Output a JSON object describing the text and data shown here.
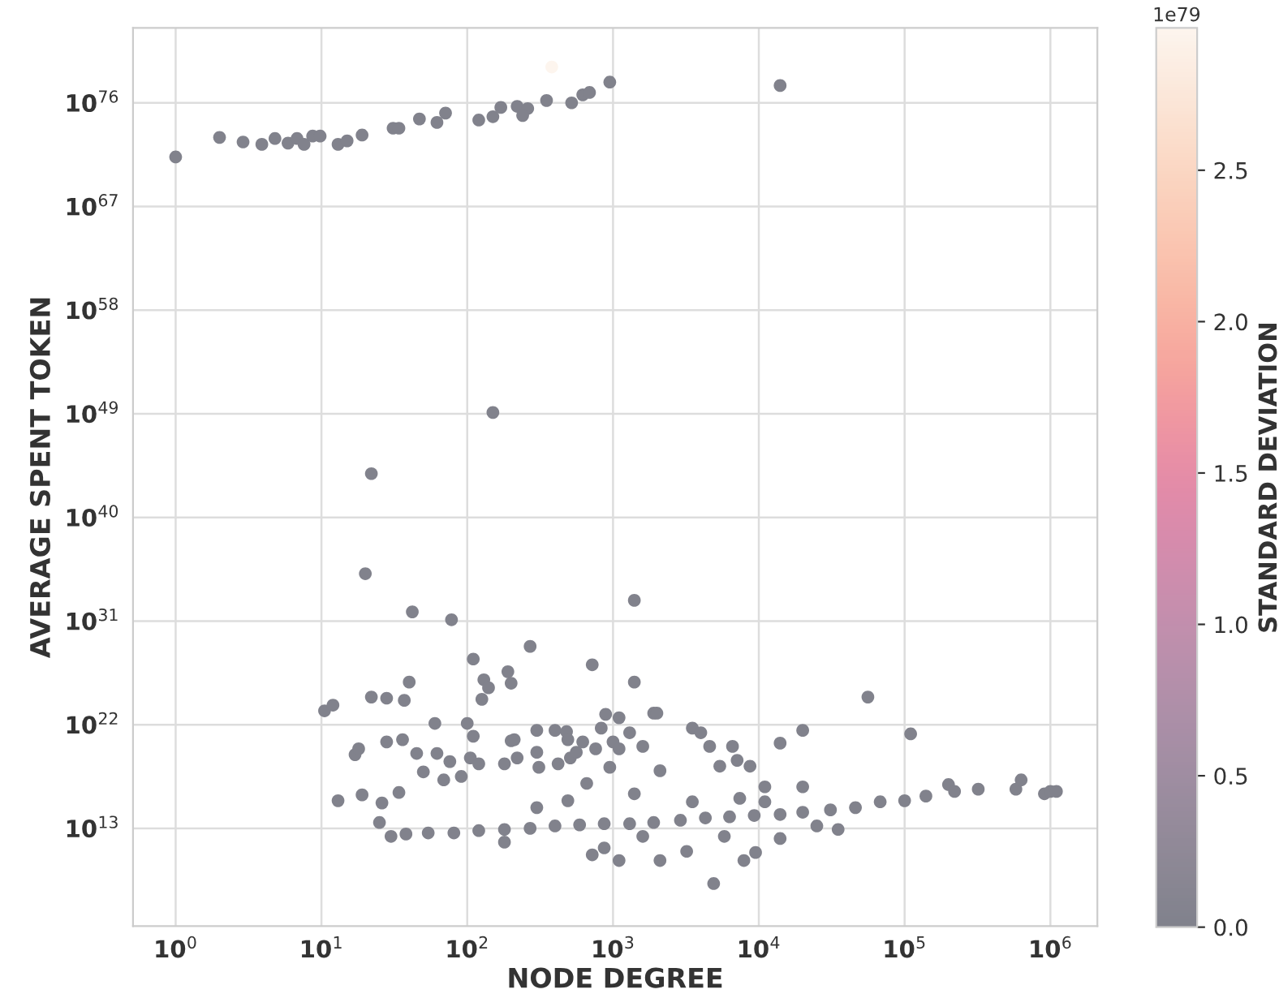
{
  "chart_data": {
    "type": "scatter",
    "xlabel": "NODE DEGREE",
    "ylabel": "AVERAGE SPENT TOKEN",
    "clabel": "STANDARD DEVIATION",
    "log": "xy",
    "grid": true,
    "marker": "circle",
    "x": [
      1,
      2,
      2.9,
      3.9,
      4.8,
      5.9,
      6.8,
      7.6,
      8.7,
      9.8,
      13,
      15,
      19,
      31,
      34,
      47,
      62,
      71,
      120,
      150,
      170,
      220,
      260,
      240,
      350,
      520,
      620,
      690,
      950,
      380,
      14000,
      150,
      22,
      20,
      42,
      78,
      1400,
      270,
      110,
      720,
      130,
      140,
      190,
      200,
      1400,
      40,
      56000,
      10.5,
      12,
      13,
      22,
      28,
      37,
      17,
      18,
      19,
      26,
      25,
      30,
      38,
      28,
      36,
      34,
      45,
      50,
      60,
      62,
      69,
      76,
      91,
      100,
      110,
      105,
      120,
      126,
      180,
      200,
      210,
      220,
      300,
      300,
      310,
      400,
      420,
      480,
      490,
      510,
      560,
      620,
      660,
      760,
      830,
      890,
      950,
      1000,
      1100,
      1100,
      1300,
      1600,
      1900,
      2000,
      2100,
      1400,
      3500,
      4000,
      4600,
      5400,
      6600,
      7100,
      8700,
      11000,
      14000,
      20000,
      20000,
      110000,
      54,
      81,
      120,
      180,
      270,
      400,
      590,
      870,
      1300,
      1900,
      2900,
      4300,
      6300,
      9300,
      14000,
      20000,
      31000,
      46000,
      68000,
      100000,
      140000,
      200000,
      220000,
      320000,
      580000,
      630000,
      910000,
      1000000,
      1100000,
      300,
      490,
      870,
      720,
      1100,
      2100,
      3200,
      4900,
      7900,
      9500,
      14000,
      35000,
      3500,
      7400,
      11000,
      180,
      1600,
      5800,
      25000
    ],
    "values": [
      2e+71,
      1e+73,
      4e+72,
      2.5e+72,
      8e+72,
      3.2e+72,
      8e+72,
      2.5e+72,
      1.3e+73,
      1.3e+73,
      2.5e+72,
      5e+72,
      1.6e+73,
      6.3e+73,
      6.3e+73,
      4e+74,
      2e+74,
      1.3e+75,
      3.2e+74,
      6.3e+74,
      4e+75,
      5e+75,
      3.2e+75,
      8e+74,
      1.6e+76,
      1e+76,
      5e+76,
      8e+76,
      6.3e+77,
      1.3e+79,
      3.2e+77,
      1.3e+49,
      6.3e+43,
      1.3e+35,
      6.3e+31,
      1.3e+31,
      6.3e+32,
      6.3e+28,
      5e+27,
      1.6e+27,
      8e+25,
      1.6e+25,
      4e+26,
      4e+25,
      5e+25,
      5e+25,
      2.5e+24,
      1.6e+23,
      5e+23,
      2500000000000000.0,
      2.5e+24,
      2e+24,
      1.3e+24,
      2.5e+19,
      8e+19,
      8000000000000000.0,
      1600000000000000.0,
      32000000000000.0,
      2000000000000.0,
      3200000000000.0,
      3.2e+20,
      5e+20,
      1.3e+16,
      3.2e+19,
      8e+17,
      1.3e+22,
      3.2e+19,
      1.6e+17,
      6.3e+18,
      3.2e+17,
      1.3e+22,
      1e+21,
      1.3e+19,
      4e+18,
      1.6e+24,
      4e+18,
      4e+20,
      5e+20,
      1.3e+19,
      3.2e+21,
      4e+19,
      2e+18,
      3.2e+21,
      4e+18,
      2.5e+21,
      5e+20,
      1.3e+19,
      4e+19,
      3.2e+20,
      8e+16,
      8e+19,
      5e+21,
      8e+22,
      2e+18,
      3.2e+20,
      4e+22,
      8e+19,
      2e+21,
      1.3e+20,
      1e+23,
      1e+23,
      1e+18,
      1e+16,
      5e+21,
      2e+21,
      1.3e+20,
      2.5e+18,
      1.3e+20,
      8e+18,
      2.5e+18,
      4e+16,
      2.5e+20,
      3.2e+21,
      4e+16,
      1.6e+21,
      4000000000000.0,
      4000000000000.0,
      6300000000000.0,
      8000000000000.0,
      10000000000000.0,
      16000000000000.0,
      20000000000000.0,
      25000000000000.0,
      25000000000000.0,
      32000000000000.0,
      50000000000000.0,
      80000000000000.0,
      100000000000000.0,
      130000000000000.0,
      160000000000000.0,
      250000000000000.0,
      400000000000000.0,
      630000000000000.0,
      2000000000000000.0,
      2500000000000000.0,
      6300000000000000.0,
      6.3e+16,
      1.6e+16,
      2.5e+16,
      2.5e+16,
      1.6e+17,
      1e+16,
      1.6e+16,
      1.6e+16,
      630000000000000.0,
      2500000000000000.0,
      200000000000.0,
      50000000000.0,
      16000000000.0,
      16000000000.0,
      100000000000.0,
      160000000.0,
      16000000000.0,
      80000000000.0,
      1300000000000.0,
      8000000000000.0,
      2000000000000000.0,
      4000000000000000.0,
      2000000000000000.0,
      630000000000.0,
      2000000000000.0,
      2000000000000.0,
      16000000000000.0
    ],
    "cvalues": [
      0,
      0,
      0,
      0,
      0,
      0,
      0,
      0,
      0,
      0,
      0,
      0,
      0,
      0,
      0,
      0,
      0,
      0,
      0,
      0,
      0,
      0,
      0,
      0,
      0,
      0,
      0,
      0,
      0,
      2.97,
      0,
      0,
      0,
      0,
      0,
      0,
      0,
      0,
      0,
      0,
      0,
      0,
      0,
      0,
      0,
      0,
      0,
      0,
      0,
      0,
      0,
      0,
      0,
      0,
      0,
      0,
      0,
      0,
      0,
      0,
      0,
      0,
      0,
      0,
      0,
      0,
      0,
      0,
      0,
      0,
      0,
      0,
      0,
      0,
      0,
      0,
      0,
      0,
      0,
      0,
      0,
      0,
      0,
      0,
      0,
      0,
      0,
      0,
      0,
      0,
      0,
      0,
      0,
      0,
      0,
      0,
      0,
      0,
      0,
      0,
      0,
      0,
      0,
      0,
      0,
      0,
      0,
      0,
      0,
      0,
      0,
      0,
      0,
      0,
      0,
      0,
      0,
      0,
      0,
      0,
      0,
      0,
      0,
      0,
      0,
      0,
      0,
      0,
      0,
      0,
      0,
      0,
      0,
      0,
      0,
      0,
      0,
      0,
      0,
      0,
      0,
      0,
      0,
      0,
      0,
      0,
      0,
      0,
      0,
      0,
      0,
      0,
      0,
      0,
      0,
      0,
      0,
      0,
      0,
      0,
      0,
      0,
      0
    ],
    "xlim": [
      0.51,
      2100000.0
    ],
    "ylim": [
      32000.0,
      3.2e+82
    ],
    "xticks": [
      {
        "value": 1,
        "label": "10$^{0}$"
      },
      {
        "value": 10,
        "label": "10$^{1}$"
      },
      {
        "value": 100,
        "label": "10$^{2}$"
      },
      {
        "value": 1000,
        "label": "10$^{3}$"
      },
      {
        "value": 10000,
        "label": "10$^{4}$"
      },
      {
        "value": 100000,
        "label": "10$^{5}$"
      },
      {
        "value": 1000000,
        "label": "10$^{6}$"
      }
    ],
    "yticks": [
      {
        "value": 10000000000000.0,
        "label": "10$^{13}$"
      },
      {
        "value": 1e+22,
        "label": "10$^{22}$"
      },
      {
        "value": 1e+31,
        "label": "10$^{31}$"
      },
      {
        "value": 1e+40,
        "label": "10$^{40}$"
      },
      {
        "value": 1e+49,
        "label": "10$^{49}$"
      },
      {
        "value": 1e+58,
        "label": "10$^{58}$"
      },
      {
        "value": 1e+67,
        "label": "10$^{67}$"
      },
      {
        "value": 1e+76,
        "label": "10$^{76}$"
      }
    ],
    "clim": [
      0,
      2.97
    ],
    "cticks": [
      {
        "value": 0,
        "label": "0.0"
      },
      {
        "value": 0.5,
        "label": "0.5"
      },
      {
        "value": 1,
        "label": "1.0"
      },
      {
        "value": 1.5,
        "label": "1.5"
      },
      {
        "value": 2,
        "label": "2.0"
      },
      {
        "value": 2.5,
        "label": "2.5"
      }
    ],
    "annotations": [
      "1e79"
    ]
  }
}
